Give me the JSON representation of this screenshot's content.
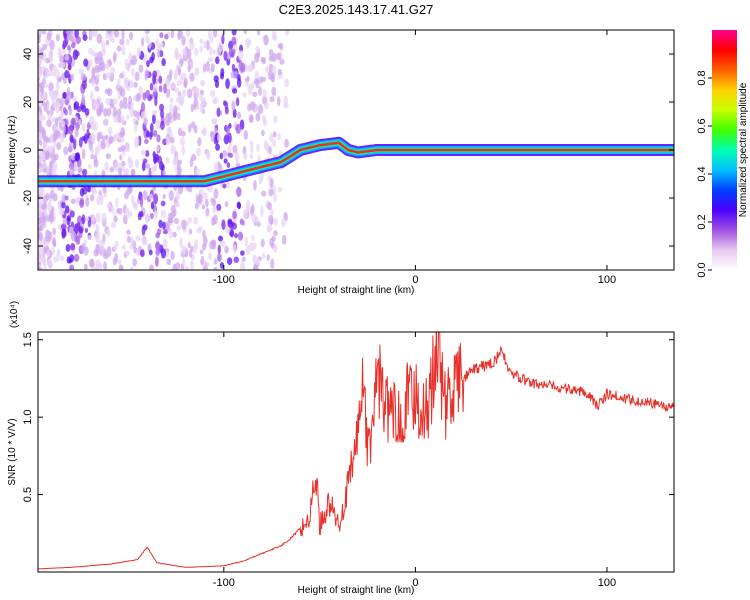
{
  "page_title": "C2E3.2025.143.17.41.G27",
  "chart_data": [
    {
      "type": "heatmap",
      "xlabel": "Height of straight line (km)",
      "ylabel": "Frequency (Hz)",
      "xlim": [
        -197,
        135
      ],
      "ylim": [
        -50,
        50
      ],
      "xticks": [
        -100,
        0,
        100
      ],
      "yticks": [
        -40,
        -20,
        0,
        20,
        40
      ],
      "grid": false,
      "colorbar": {
        "label": "Normalized spectral amplitude",
        "range": [
          0,
          1
        ],
        "ticks": [
          "0.0",
          "0.2",
          "0.4",
          "0.6",
          "0.8"
        ],
        "colors": [
          "#ffffff",
          "#e6c8f0",
          "#a050e0",
          "#4a00ff",
          "#0040ff",
          "#00c0ff",
          "#00ffb0",
          "#40ff00",
          "#c8ff00",
          "#ffd000",
          "#ff6000",
          "#ff0000",
          "#ff0090"
        ]
      },
      "ridge": {
        "x": [
          -197,
          -150,
          -120,
          -110,
          -90,
          -70,
          -60,
          -50,
          -40,
          -35,
          -30,
          -20,
          -10,
          0,
          10,
          135
        ],
        "y": [
          -13,
          -13,
          -13,
          -13,
          -9,
          -5,
          0,
          2,
          3,
          0,
          -1,
          0,
          0,
          0,
          0,
          0
        ]
      }
    },
    {
      "type": "line",
      "xlabel": "Height of straight line (km)",
      "ylabel": "SNR (10 * V/V)",
      "yscale_label": "(x10⁴)",
      "xlim": [
        -197,
        135
      ],
      "ylim": [
        0,
        1.55
      ],
      "xticks": [
        -100,
        0,
        100
      ],
      "yticks": [
        "0.5",
        "1.0",
        "1.5"
      ],
      "grid": false,
      "series": [
        {
          "color": "#e8302a",
          "x": [
            -197,
            -180,
            -160,
            -145,
            -140,
            -135,
            -120,
            -100,
            -90,
            -80,
            -70,
            -65,
            -60,
            -55,
            -52,
            -50,
            -45,
            -40,
            -35,
            -30,
            -27,
            -25,
            -22,
            -20,
            -15,
            -10,
            -5,
            0,
            5,
            10,
            12,
            15,
            20,
            25,
            30,
            40,
            45,
            50,
            60,
            70,
            80,
            90,
            95,
            100,
            110,
            120,
            135
          ],
          "y": [
            0.02,
            0.03,
            0.05,
            0.08,
            0.16,
            0.06,
            0.03,
            0.04,
            0.07,
            0.12,
            0.17,
            0.22,
            0.28,
            0.35,
            0.65,
            0.3,
            0.45,
            0.3,
            0.55,
            0.9,
            1.33,
            0.75,
            1.0,
            1.3,
            1.05,
            1.0,
            1.1,
            1.15,
            1.0,
            1.3,
            1.55,
            1.05,
            1.2,
            1.25,
            1.3,
            1.35,
            1.42,
            1.28,
            1.22,
            1.2,
            1.18,
            1.16,
            1.07,
            1.15,
            1.12,
            1.1,
            1.06
          ]
        }
      ]
    }
  ]
}
